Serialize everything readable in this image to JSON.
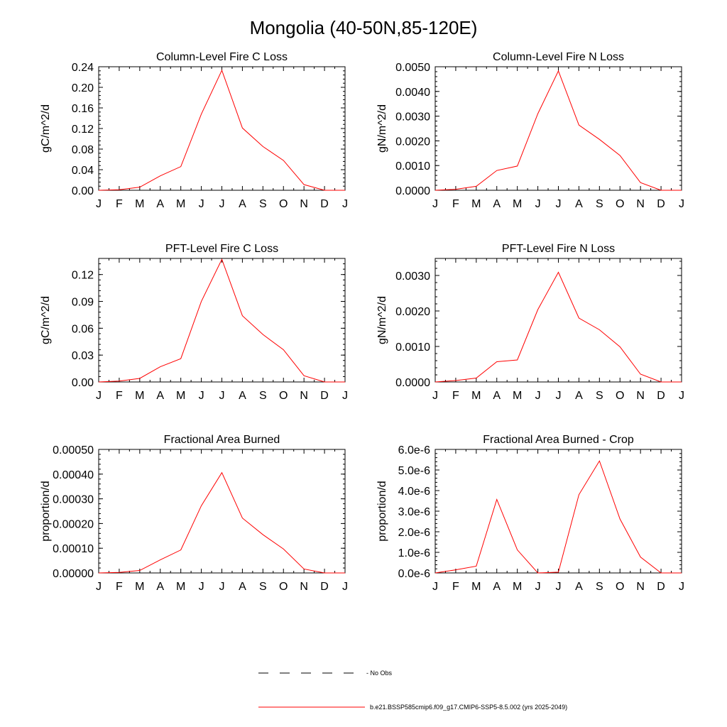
{
  "figure": {
    "title": "Mongolia (40-50N,85-120E)"
  },
  "legend": {
    "entries": [
      {
        "label": "- No Obs",
        "style": "dashed",
        "color": "#000000"
      },
      {
        "label": "b.e21.BSSP585cmip6.f09_g17.CMIP6-SSP5-8.5.002 (yrs 2025-2049)",
        "style": "solid",
        "color": "#ff0000"
      }
    ]
  },
  "chart_data": [
    {
      "type": "line",
      "title": "Column-Level Fire C Loss",
      "ylabel": "gC/m^2/d",
      "categories": [
        "J",
        "F",
        "M",
        "A",
        "M",
        "J",
        "J",
        "A",
        "S",
        "O",
        "N",
        "D",
        "J"
      ],
      "ylim": [
        0,
        0.24
      ],
      "yticks": [
        0,
        0.04,
        0.08,
        0.12,
        0.16,
        0.2,
        0.24
      ],
      "ytick_labels": [
        "0.00",
        "0.04",
        "0.08",
        "0.12",
        "0.16",
        "0.20",
        "0.24"
      ],
      "series": [
        {
          "color": "#ff0000",
          "values": [
            0.0,
            0.001,
            0.006,
            0.028,
            0.046,
            0.148,
            0.233,
            0.121,
            0.085,
            0.058,
            0.011,
            0.0,
            0.0
          ]
        }
      ]
    },
    {
      "type": "line",
      "title": "Column-Level Fire N Loss",
      "ylabel": "gN/m^2/d",
      "categories": [
        "J",
        "F",
        "M",
        "A",
        "M",
        "J",
        "J",
        "A",
        "S",
        "O",
        "N",
        "D",
        "J"
      ],
      "ylim": [
        0,
        0.005
      ],
      "yticks": [
        0,
        0.001,
        0.002,
        0.003,
        0.004,
        0.005
      ],
      "ytick_labels": [
        "0.0000",
        "0.0010",
        "0.0020",
        "0.0030",
        "0.0040",
        "0.0050"
      ],
      "series": [
        {
          "color": "#ff0000",
          "values": [
            0.0,
            4e-05,
            0.00016,
            0.0008,
            0.00098,
            0.0031,
            0.00483,
            0.00264,
            0.00206,
            0.00141,
            0.00031,
            0.0,
            0.0
          ]
        }
      ]
    },
    {
      "type": "line",
      "title": "PFT-Level Fire C Loss",
      "ylabel": "gC/m^2/d",
      "categories": [
        "J",
        "F",
        "M",
        "A",
        "M",
        "J",
        "J",
        "A",
        "S",
        "O",
        "N",
        "D",
        "J"
      ],
      "ylim": [
        0,
        0.138
      ],
      "yticks": [
        0,
        0.03,
        0.06,
        0.09,
        0.12
      ],
      "ytick_labels": [
        "0.00",
        "0.03",
        "0.06",
        "0.09",
        "0.12"
      ],
      "series": [
        {
          "color": "#ff0000",
          "values": [
            0.0,
            0.001,
            0.004,
            0.017,
            0.026,
            0.09,
            0.137,
            0.074,
            0.053,
            0.036,
            0.007,
            0.0,
            0.0
          ]
        }
      ]
    },
    {
      "type": "line",
      "title": "PFT-Level Fire N Loss",
      "ylabel": "gN/m^2/d",
      "categories": [
        "J",
        "F",
        "M",
        "A",
        "M",
        "J",
        "J",
        "A",
        "S",
        "O",
        "N",
        "D",
        "J"
      ],
      "ylim": [
        0,
        0.00348
      ],
      "yticks": [
        0,
        0.001,
        0.002,
        0.003
      ],
      "ytick_labels": [
        "0.0000",
        "0.0010",
        "0.0020",
        "0.0030"
      ],
      "series": [
        {
          "color": "#ff0000",
          "values": [
            0.0,
            4e-05,
            0.00011,
            0.00057,
            0.00062,
            0.00204,
            0.00309,
            0.0018,
            0.00147,
            0.00099,
            0.00022,
            0.0,
            0.0
          ]
        }
      ]
    },
    {
      "type": "line",
      "title": "Fractional Area Burned",
      "ylabel": "proportion/d",
      "categories": [
        "J",
        "F",
        "M",
        "A",
        "M",
        "J",
        "J",
        "A",
        "S",
        "O",
        "N",
        "D",
        "J"
      ],
      "ylim": [
        0,
        0.0005
      ],
      "yticks": [
        0,
        0.0001,
        0.0002,
        0.0003,
        0.0004,
        0.0005
      ],
      "ytick_labels": [
        "0.00000",
        "0.00010",
        "0.00020",
        "0.00030",
        "0.00040",
        "0.00050"
      ],
      "series": [
        {
          "color": "#ff0000",
          "values": [
            0.0,
            2e-06,
            1e-05,
            5.3e-05,
            9.3e-05,
            0.000272,
            0.000406,
            0.000222,
            0.000155,
            9.7e-05,
            1.6e-05,
            0.0,
            0.0
          ]
        }
      ]
    },
    {
      "type": "line",
      "title": "Fractional Area Burned - Crop",
      "ylabel": "proportion/d",
      "categories": [
        "J",
        "F",
        "M",
        "A",
        "M",
        "J",
        "J",
        "A",
        "S",
        "O",
        "N",
        "D",
        "J"
      ],
      "ylim": [
        0,
        6e-06
      ],
      "yticks": [
        0,
        1e-06,
        2e-06,
        3e-06,
        4e-06,
        5e-06,
        6e-06
      ],
      "ytick_labels": [
        "0.0e-6",
        "1.0e-6",
        "2.0e-6",
        "3.0e-6",
        "4.0e-6",
        "5.0e-6",
        "6.0e-6"
      ],
      "series": [
        {
          "color": "#ff0000",
          "values": [
            0.0,
            1.5e-07,
            3.3e-07,
            3.57e-06,
            1.12e-06,
            0.0,
            4e-08,
            3.8e-06,
            5.44e-06,
            2.62e-06,
            7.7e-07,
            0.0,
            0.0
          ]
        }
      ]
    }
  ]
}
